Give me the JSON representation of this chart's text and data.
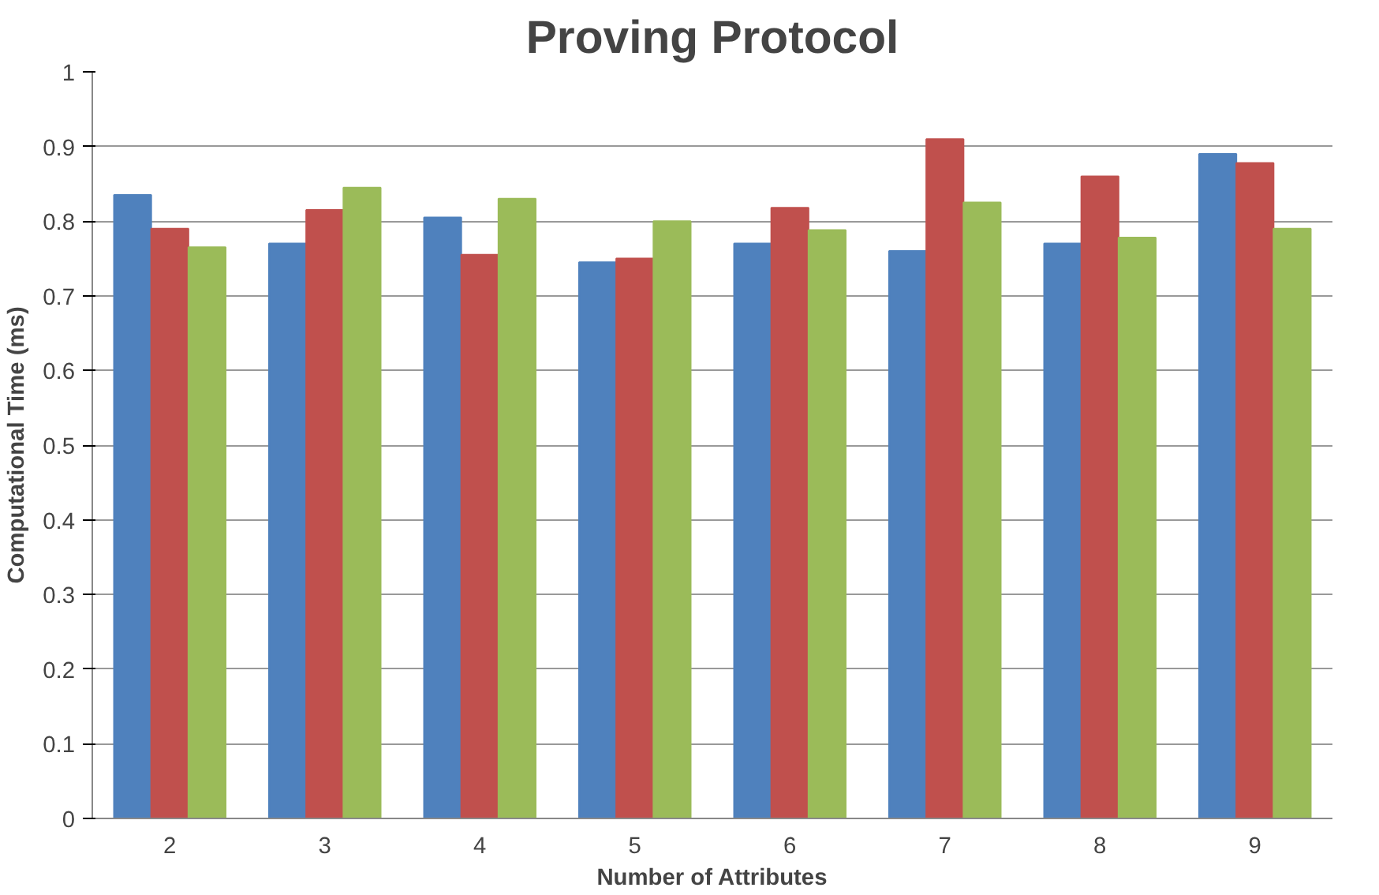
{
  "chart_data": {
    "type": "bar",
    "title": "Proving Protocol",
    "xlabel": "Number of Attributes",
    "ylabel": "Computational Time (ms)",
    "categories": [
      "2",
      "3",
      "4",
      "5",
      "6",
      "7",
      "8",
      "9"
    ],
    "series": [
      {
        "color": "#4f81bd",
        "values": [
          0.835,
          0.77,
          0.805,
          0.745,
          0.77,
          0.76,
          0.77,
          0.89
        ]
      },
      {
        "color": "#c0504d",
        "values": [
          0.79,
          0.815,
          0.755,
          0.75,
          0.818,
          0.91,
          0.86,
          0.878
        ]
      },
      {
        "color": "#9bbb59",
        "values": [
          0.765,
          0.845,
          0.83,
          0.8,
          0.788,
          0.825,
          0.778,
          0.79
        ]
      }
    ],
    "ylim": [
      0,
      1
    ],
    "yticks": [
      0,
      {
        "value": 0.1,
        "label": "0.1"
      },
      {
        "value": 0.2,
        "label": "0.2"
      },
      {
        "value": 0.3,
        "label": "0.3"
      },
      {
        "value": 0.4,
        "label": "0.4"
      },
      {
        "value": 0.5,
        "label": "0.5"
      },
      {
        "value": 0.6,
        "label": "0.6"
      },
      {
        "value": 0.7,
        "label": "0.7"
      },
      {
        "value": 0.8,
        "label": "0.8"
      },
      {
        "value": 0.9,
        "label": "0.9"
      },
      1
    ],
    "grid": "y"
  }
}
